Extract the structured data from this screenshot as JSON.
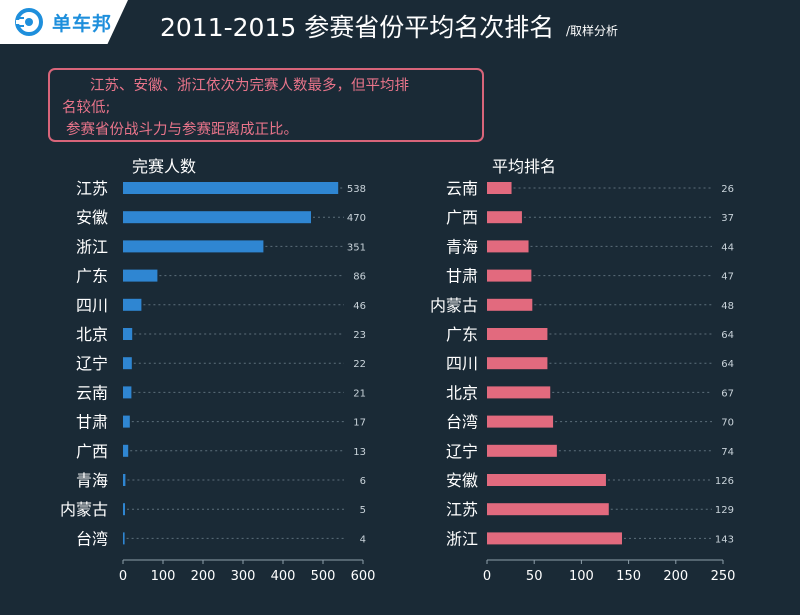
{
  "header": {
    "brand": "单车邦",
    "logo_icon": "bike-logo-icon",
    "title": "2011-2015 参赛省份平均名次排名",
    "subtitle": "/取样分析"
  },
  "note": {
    "line1": "江苏、安徽、浙江依次为完赛人数最多，但平均排",
    "line2": "名较低;",
    "line3": "参赛省份战斗力与参赛距离成正比。"
  },
  "colors": {
    "background": "#1a2a36",
    "left_bars": "#2f86d2",
    "right_bars": "#e26a7e",
    "note_border": "#d8657a"
  },
  "chart_data": [
    {
      "type": "bar",
      "orientation": "horizontal",
      "title": "完赛人数",
      "categories": [
        "江苏",
        "安徽",
        "浙江",
        "广东",
        "四川",
        "北京",
        "辽宁",
        "云南",
        "甘肃",
        "广西",
        "青海",
        "内蒙古",
        "台湾"
      ],
      "values": [
        538,
        470,
        351,
        86,
        46,
        23,
        22,
        21,
        17,
        13,
        6,
        5,
        4
      ],
      "xlim": [
        0,
        600
      ],
      "xticks": [
        0,
        100,
        200,
        300,
        400,
        500,
        600
      ],
      "grid": false
    },
    {
      "type": "bar",
      "orientation": "horizontal",
      "title": "平均排名",
      "categories": [
        "云南",
        "广西",
        "青海",
        "甘肃",
        "内蒙古",
        "广东",
        "四川",
        "北京",
        "台湾",
        "辽宁",
        "安徽",
        "江苏",
        "浙江"
      ],
      "values": [
        26,
        37,
        44,
        47,
        48,
        64,
        64,
        67,
        70,
        74,
        126,
        129,
        143
      ],
      "xlim": [
        0,
        250
      ],
      "xticks": [
        0,
        50,
        100,
        150,
        200,
        250
      ],
      "grid": false
    }
  ]
}
